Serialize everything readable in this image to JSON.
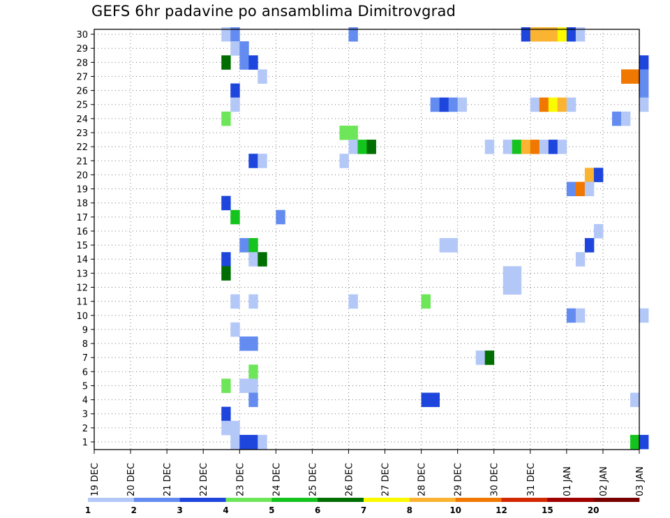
{
  "title": "GEFS 6hr padavine po ansamblima Dimitrovgrad",
  "chart_data": {
    "type": "heatmap",
    "title": "GEFS 6hr padavine po ansamblima Dimitrovgrad",
    "x_tick_labels": [
      "19 DEC",
      "20 DEC",
      "21 DEC",
      "22 DEC",
      "23 DEC",
      "24 DEC",
      "25 DEC",
      "26 DEC",
      "27 DEC",
      "28 DEC",
      "29 DEC",
      "30 DEC",
      "31 DEC",
      "01 JAN",
      "02 JAN",
      "03 JAN"
    ],
    "y_tick_labels": [
      "1",
      "2",
      "3",
      "4",
      "5",
      "6",
      "7",
      "8",
      "9",
      "10",
      "11",
      "12",
      "13",
      "14",
      "15",
      "16",
      "17",
      "18",
      "19",
      "20",
      "21",
      "22",
      "23",
      "24",
      "25",
      "26",
      "27",
      "28",
      "29",
      "30"
    ],
    "grid": true,
    "x_step": "6hr",
    "colorbar": {
      "labels": [
        "1",
        "2",
        "3",
        "4",
        "5",
        "6",
        "7",
        "8",
        "10",
        "12",
        "15",
        "20"
      ],
      "colors": [
        "#b4c8f8",
        "#648cf0",
        "#1e46dc",
        "#6ee65a",
        "#14c31e",
        "#006e00",
        "#fafa00",
        "#fab432",
        "#f07800",
        "#d22800",
        "#a00000",
        "#780000"
      ]
    },
    "cells": [
      {
        "m": 30,
        "t": 14,
        "v": 1.5
      },
      {
        "m": 30,
        "t": 15,
        "v": 2.5
      },
      {
        "m": 30,
        "t": 28,
        "v": 2.5
      },
      {
        "m": 30,
        "t": 47,
        "v": 3.5
      },
      {
        "m": 30,
        "t": 48,
        "v": 9
      },
      {
        "m": 30,
        "t": 49,
        "v": 9
      },
      {
        "m": 30,
        "t": 50,
        "v": 9
      },
      {
        "m": 30,
        "t": 51,
        "v": 7.5
      },
      {
        "m": 30,
        "t": 52,
        "v": 3.5
      },
      {
        "m": 30,
        "t": 53,
        "v": 1.5
      },
      {
        "m": 29,
        "t": 15,
        "v": 1.5
      },
      {
        "m": 29,
        "t": 16,
        "v": 2.5
      },
      {
        "m": 28,
        "t": 14,
        "v": 6.5
      },
      {
        "m": 28,
        "t": 16,
        "v": 2.5
      },
      {
        "m": 28,
        "t": 17,
        "v": 3.5
      },
      {
        "m": 28,
        "t": 60,
        "v": 3.5
      },
      {
        "m": 27,
        "t": 18,
        "v": 1.5
      },
      {
        "m": 27,
        "t": 58,
        "v": 11
      },
      {
        "m": 27,
        "t": 59,
        "v": 11
      },
      {
        "m": 27,
        "t": 60,
        "v": 2.5
      },
      {
        "m": 26,
        "t": 15,
        "v": 3.5
      },
      {
        "m": 26,
        "t": 60,
        "v": 2.5
      },
      {
        "m": 25,
        "t": 15,
        "v": 1.5
      },
      {
        "m": 25,
        "t": 37,
        "v": 2.5
      },
      {
        "m": 25,
        "t": 38,
        "v": 3.5
      },
      {
        "m": 25,
        "t": 39,
        "v": 2.5
      },
      {
        "m": 25,
        "t": 40,
        "v": 1.5
      },
      {
        "m": 25,
        "t": 48,
        "v": 1.5
      },
      {
        "m": 25,
        "t": 49,
        "v": 11
      },
      {
        "m": 25,
        "t": 50,
        "v": 7.5
      },
      {
        "m": 25,
        "t": 51,
        "v": 9
      },
      {
        "m": 25,
        "t": 52,
        "v": 1.5
      },
      {
        "m": 25,
        "t": 60,
        "v": 1.5
      },
      {
        "m": 24,
        "t": 14,
        "v": 4.5
      },
      {
        "m": 24,
        "t": 57,
        "v": 2.5
      },
      {
        "m": 24,
        "t": 58,
        "v": 1.5
      },
      {
        "m": 23,
        "t": 27,
        "v": 4.5
      },
      {
        "m": 23,
        "t": 28,
        "v": 4.5
      },
      {
        "m": 22,
        "t": 28,
        "v": 1.5
      },
      {
        "m": 22,
        "t": 29,
        "v": 5.5
      },
      {
        "m": 22,
        "t": 30,
        "v": 6.5
      },
      {
        "m": 22,
        "t": 43,
        "v": 1.5
      },
      {
        "m": 22,
        "t": 45,
        "v": 1.5
      },
      {
        "m": 22,
        "t": 46,
        "v": 5.5
      },
      {
        "m": 22,
        "t": 47,
        "v": 9
      },
      {
        "m": 22,
        "t": 48,
        "v": 11
      },
      {
        "m": 22,
        "t": 49,
        "v": 1.5
      },
      {
        "m": 22,
        "t": 50,
        "v": 3.5
      },
      {
        "m": 22,
        "t": 51,
        "v": 1.5
      },
      {
        "m": 21,
        "t": 17,
        "v": 3.5
      },
      {
        "m": 21,
        "t": 18,
        "v": 1.5
      },
      {
        "m": 21,
        "t": 27,
        "v": 1.5
      },
      {
        "m": 20,
        "t": 54,
        "v": 9
      },
      {
        "m": 20,
        "t": 55,
        "v": 3.5
      },
      {
        "m": 19,
        "t": 52,
        "v": 2.5
      },
      {
        "m": 19,
        "t": 53,
        "v": 11
      },
      {
        "m": 19,
        "t": 54,
        "v": 1.5
      },
      {
        "m": 18,
        "t": 14,
        "v": 3.5
      },
      {
        "m": 17,
        "t": 15,
        "v": 5.5
      },
      {
        "m": 17,
        "t": 20,
        "v": 2.5
      },
      {
        "m": 16,
        "t": 55,
        "v": 1.5
      },
      {
        "m": 15,
        "t": 16,
        "v": 2.5
      },
      {
        "m": 15,
        "t": 17,
        "v": 5.5
      },
      {
        "m": 15,
        "t": 38,
        "v": 1.5
      },
      {
        "m": 15,
        "t": 39,
        "v": 1.5
      },
      {
        "m": 15,
        "t": 54,
        "v": 3.5
      },
      {
        "m": 14,
        "t": 14,
        "v": 3.5
      },
      {
        "m": 14,
        "t": 17,
        "v": 1.5
      },
      {
        "m": 14,
        "t": 18,
        "v": 6.5
      },
      {
        "m": 14,
        "t": 53,
        "v": 1.5
      },
      {
        "m": 13,
        "t": 14,
        "v": 6.5
      },
      {
        "m": 13,
        "t": 45,
        "v": 1.5
      },
      {
        "m": 13,
        "t": 46,
        "v": 1.5
      },
      {
        "m": 12,
        "t": 45,
        "v": 1.5
      },
      {
        "m": 12,
        "t": 46,
        "v": 1.5
      },
      {
        "m": 11,
        "t": 15,
        "v": 1.5
      },
      {
        "m": 11,
        "t": 17,
        "v": 1.5
      },
      {
        "m": 11,
        "t": 28,
        "v": 1.5
      },
      {
        "m": 11,
        "t": 36,
        "v": 4.5
      },
      {
        "m": 10,
        "t": 52,
        "v": 2.5
      },
      {
        "m": 10,
        "t": 53,
        "v": 1.5
      },
      {
        "m": 10,
        "t": 60,
        "v": 1.5
      },
      {
        "m": 9,
        "t": 15,
        "v": 1.5
      },
      {
        "m": 8,
        "t": 16,
        "v": 2.5
      },
      {
        "m": 8,
        "t": 17,
        "v": 2.5
      },
      {
        "m": 7,
        "t": 42,
        "v": 1.5
      },
      {
        "m": 7,
        "t": 43,
        "v": 6.5
      },
      {
        "m": 6,
        "t": 17,
        "v": 4.5
      },
      {
        "m": 5,
        "t": 14,
        "v": 4.5
      },
      {
        "m": 5,
        "t": 16,
        "v": 1.5
      },
      {
        "m": 5,
        "t": 17,
        "v": 1.5
      },
      {
        "m": 4,
        "t": 17,
        "v": 2.5
      },
      {
        "m": 4,
        "t": 36,
        "v": 3.5
      },
      {
        "m": 4,
        "t": 37,
        "v": 3.5
      },
      {
        "m": 4,
        "t": 59,
        "v": 1.5
      },
      {
        "m": 3,
        "t": 14,
        "v": 3.5
      },
      {
        "m": 2,
        "t": 14,
        "v": 1.5
      },
      {
        "m": 2,
        "t": 15,
        "v": 1.5
      },
      {
        "m": 1,
        "t": 15,
        "v": 1.5
      },
      {
        "m": 1,
        "t": 16,
        "v": 3.5
      },
      {
        "m": 1,
        "t": 17,
        "v": 3.5
      },
      {
        "m": 1,
        "t": 18,
        "v": 1.5
      },
      {
        "m": 1,
        "t": 59,
        "v": 5.5
      },
      {
        "m": 1,
        "t": 60,
        "v": 3.5
      }
    ]
  }
}
